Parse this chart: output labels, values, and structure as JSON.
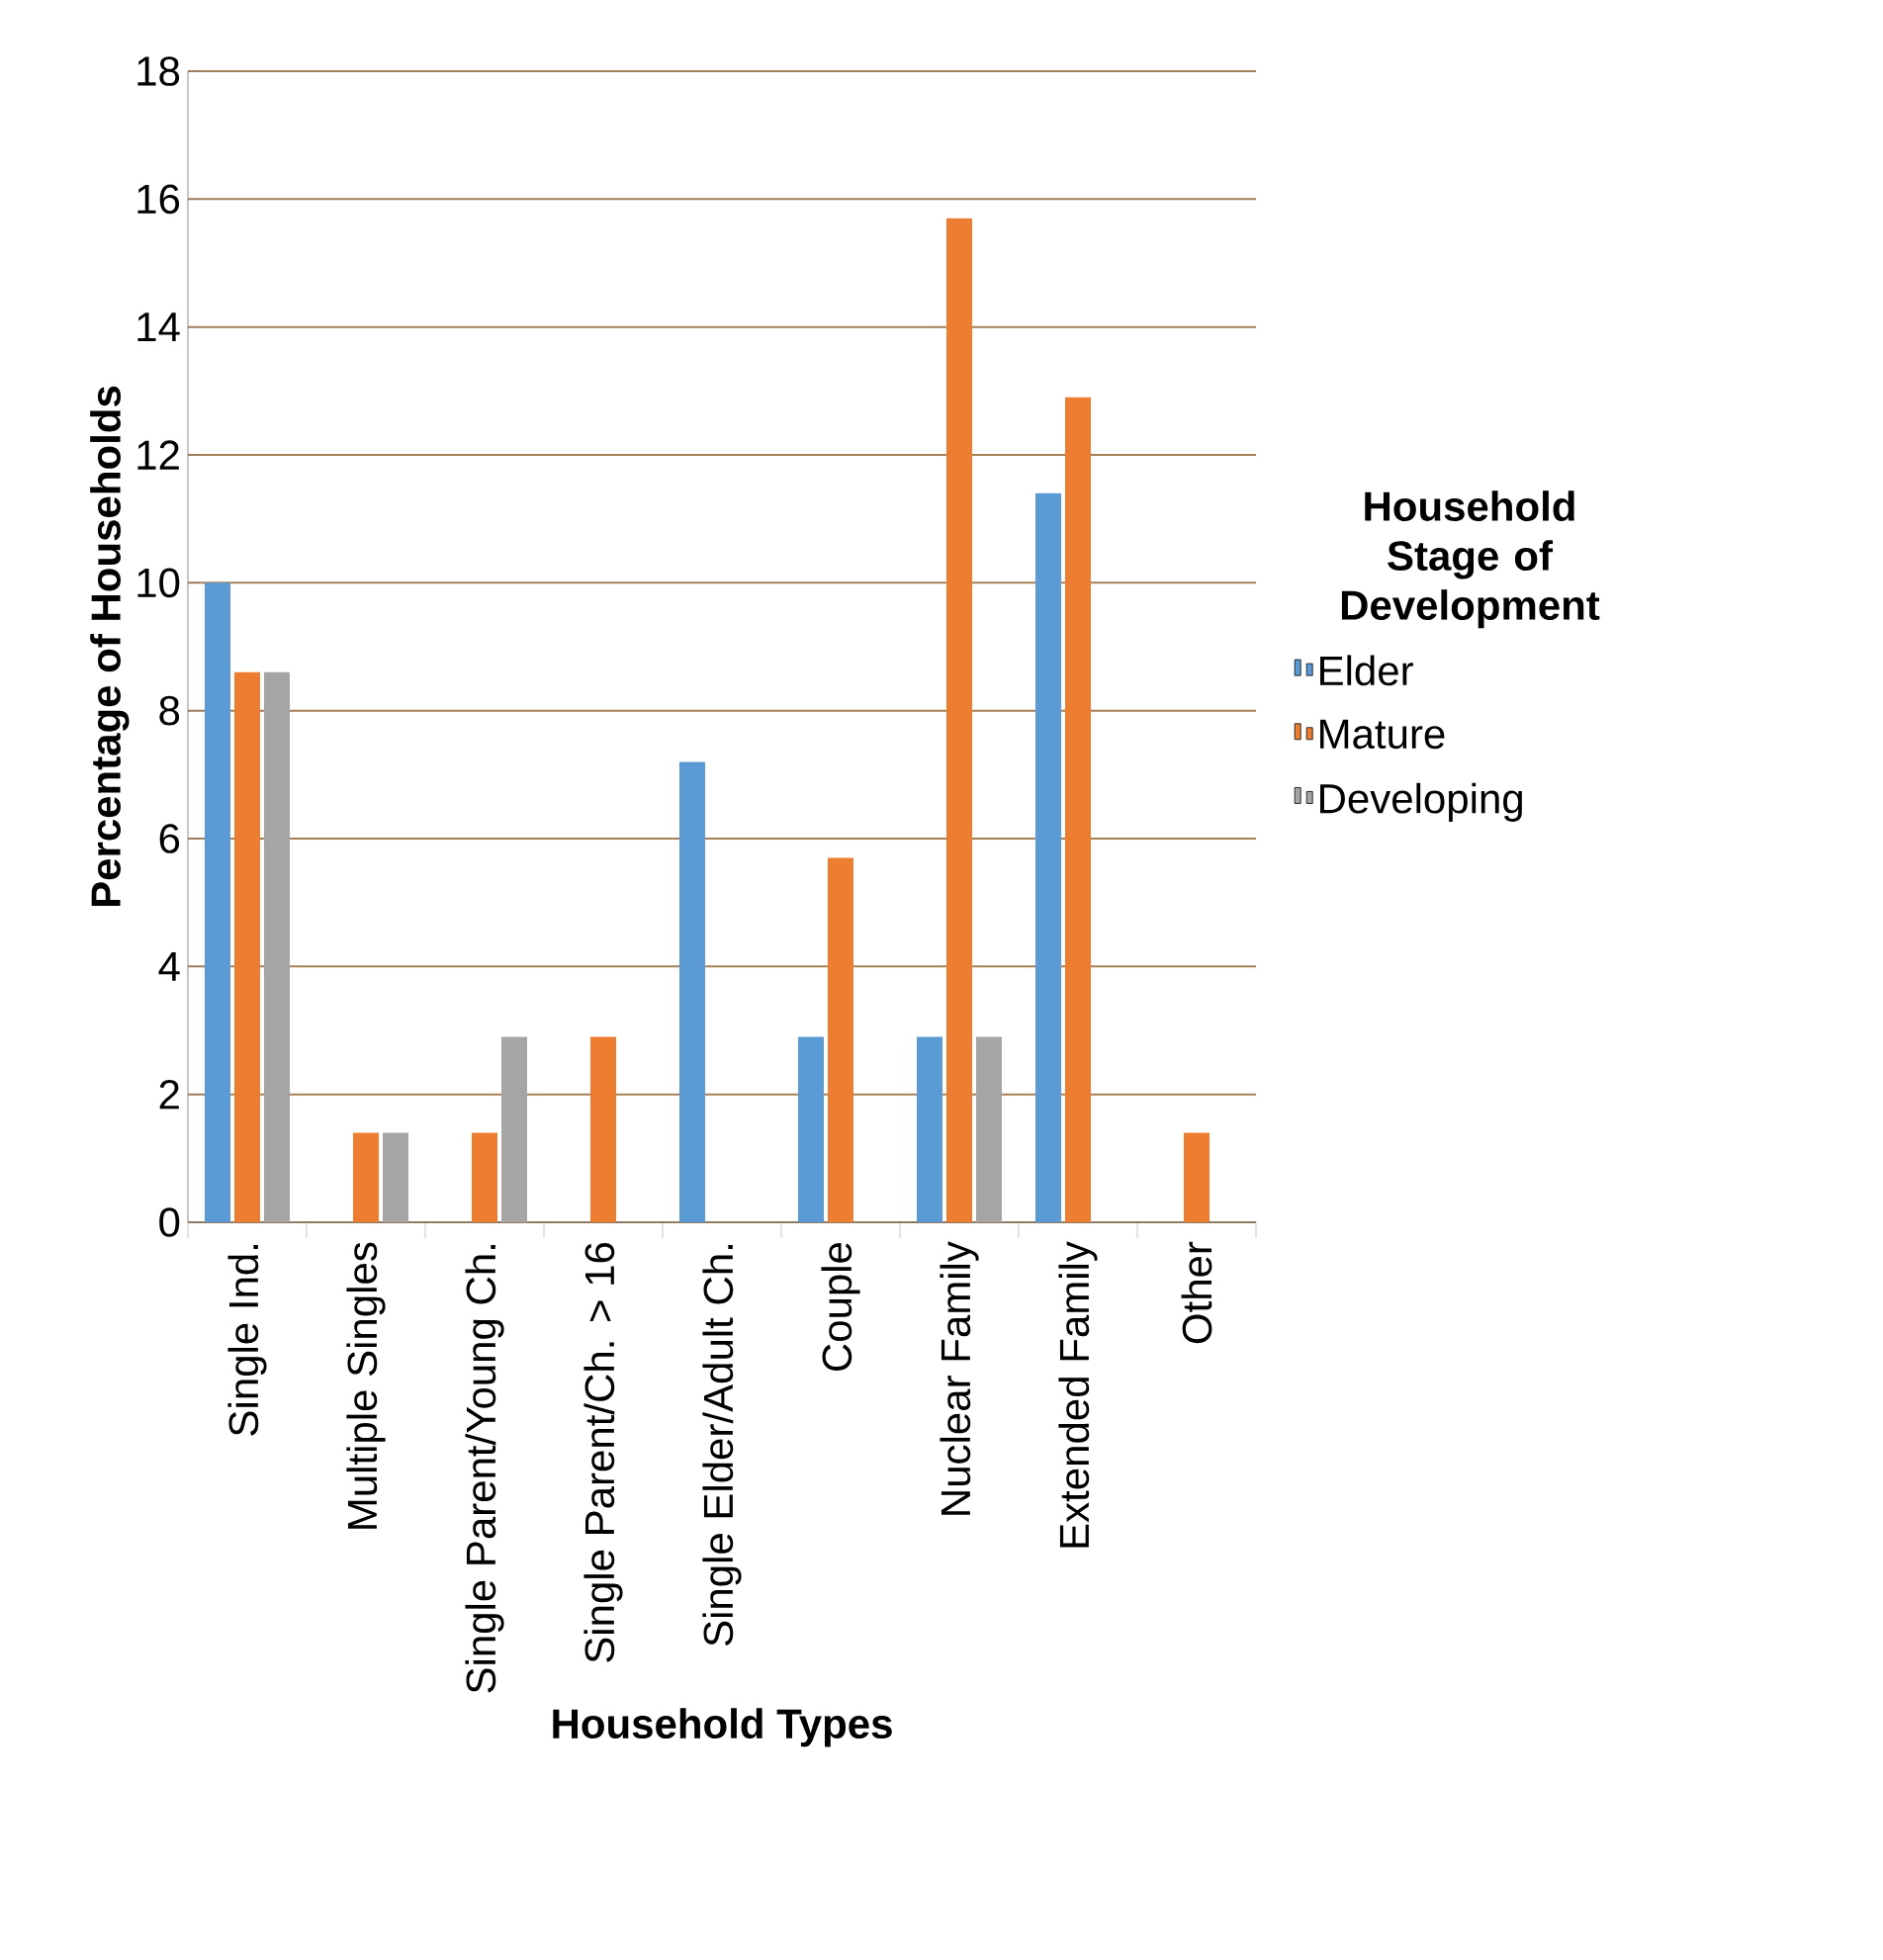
{
  "chart_data": {
    "type": "bar",
    "xlabel": "Household Types",
    "ylabel": "Percentage of Households",
    "legend_title": "Household Stage of Development",
    "categories": [
      "Single Ind.",
      "Multiple Singles",
      "Single Parent/Young Ch.",
      "Single Parent/Ch. > 16",
      "Single Elder/Adult Ch.",
      "Couple",
      "Nuclear Family",
      "Extended Family",
      "Other"
    ],
    "series": [
      {
        "name": "Elder",
        "color": "#5b9bd5",
        "values": [
          10.0,
          0,
          0,
          0,
          7.2,
          2.9,
          2.9,
          11.4,
          0
        ]
      },
      {
        "name": "Mature",
        "color": "#ed7d31",
        "values": [
          8.6,
          1.4,
          1.4,
          2.9,
          0,
          5.7,
          15.7,
          12.9,
          1.4
        ]
      },
      {
        "name": "Developing",
        "color": "#a5a5a5",
        "values": [
          8.6,
          1.4,
          2.9,
          0,
          0,
          0,
          2.9,
          0,
          0
        ]
      }
    ],
    "ylim": [
      0,
      18
    ],
    "yticks": [
      0,
      2,
      4,
      6,
      8,
      10,
      12,
      14,
      16,
      18
    ],
    "grid": "y",
    "legend": "right"
  }
}
